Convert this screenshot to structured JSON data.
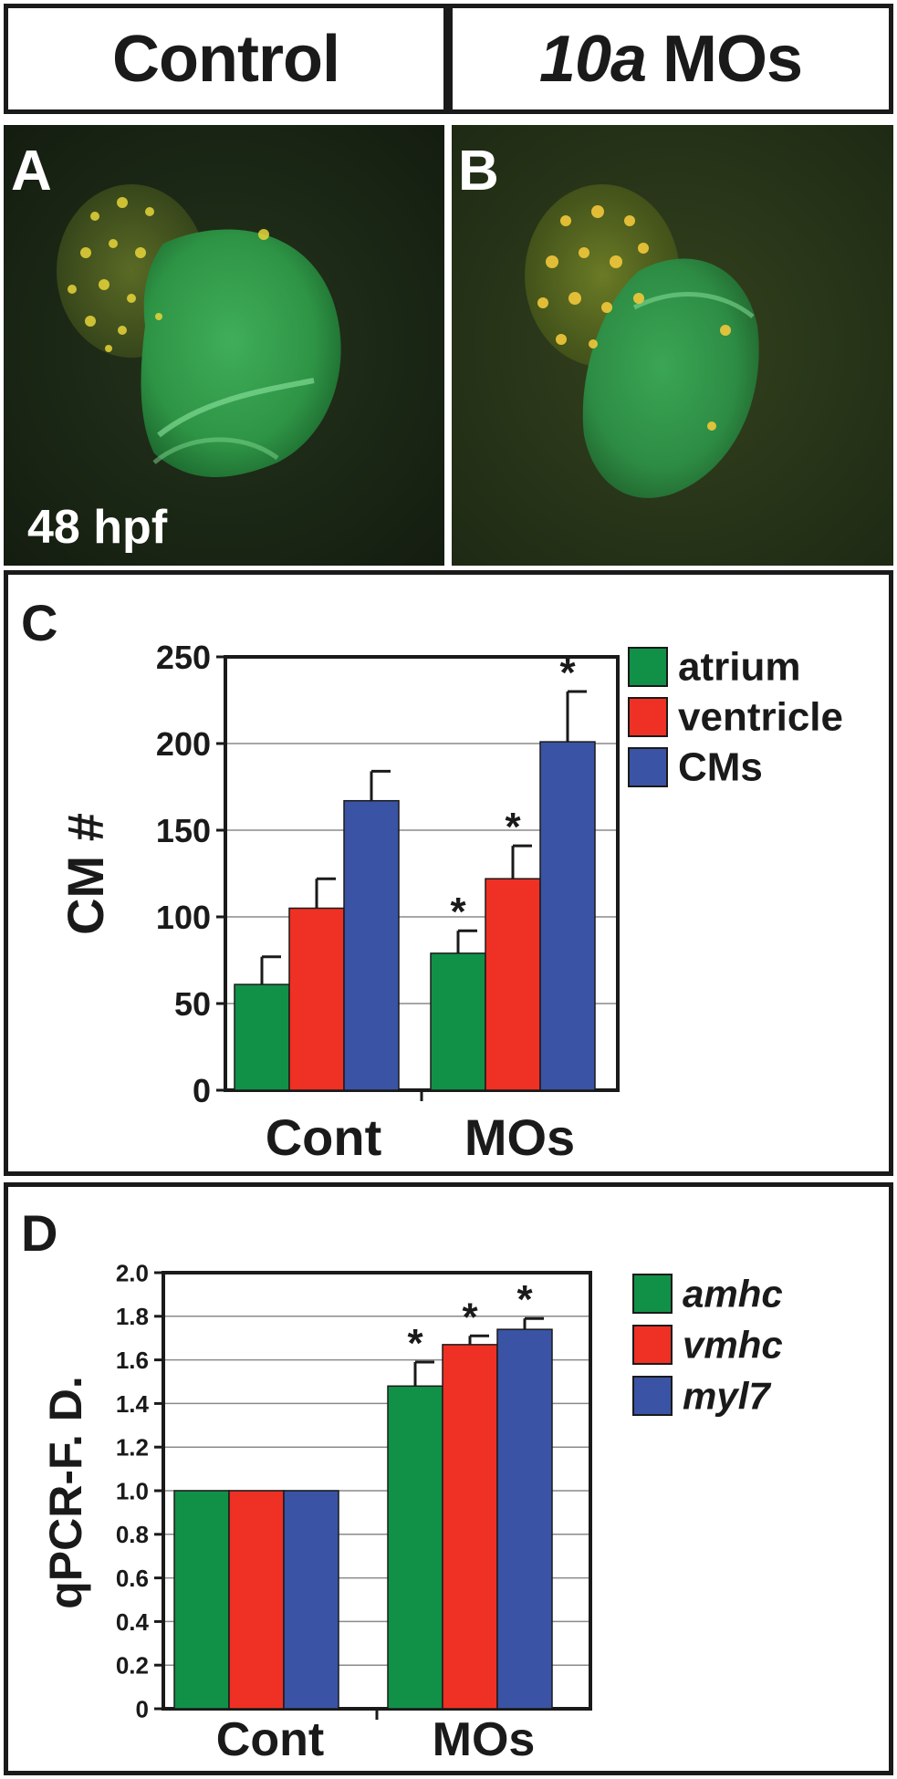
{
  "header": {
    "control": "Control",
    "mo_italic": "10a",
    "mo_rest": "MOs"
  },
  "panels": {
    "a": "A",
    "b": "B",
    "stage": "48 hpf"
  },
  "colors": {
    "atrium": "#119048",
    "ventricle": "#ee3124",
    "cms": "#3a53a4",
    "ink": "#1a1a1a"
  },
  "chart_data": [
    {
      "panel": "C",
      "type": "bar",
      "ylabel": "CM #",
      "ylim": [
        0,
        250
      ],
      "yticks": [
        "0",
        "50",
        "100",
        "150",
        "200",
        "250"
      ],
      "grid": true,
      "legend": "top-right",
      "categories": [
        "Cont",
        "MOs"
      ],
      "series": [
        {
          "name": "atrium",
          "italic": false,
          "values": [
            61,
            79
          ],
          "errors": [
            16,
            13
          ],
          "significant": [
            false,
            true
          ]
        },
        {
          "name": "ventricle",
          "italic": false,
          "values": [
            105,
            122
          ],
          "errors": [
            17,
            19
          ],
          "significant": [
            false,
            true
          ]
        },
        {
          "name": "CMs",
          "italic": false,
          "values": [
            167,
            201
          ],
          "errors": [
            17,
            29
          ],
          "significant": [
            false,
            true
          ]
        }
      ],
      "marker": "*"
    },
    {
      "panel": "D",
      "type": "bar",
      "ylabel": "qPCR-F. D.",
      "ylim": [
        0,
        2.0
      ],
      "yticks": [
        "0",
        "0.2",
        "0.4",
        "0.6",
        "0.8",
        "1.0",
        "1.2",
        "1.4",
        "1.6",
        "1.8",
        "2.0"
      ],
      "grid": true,
      "legend": "top-right",
      "categories": [
        "Cont",
        "MOs"
      ],
      "series": [
        {
          "name": "amhc",
          "italic": true,
          "values": [
            1.0,
            1.48
          ],
          "errors": [
            0,
            0.11
          ],
          "significant": [
            false,
            true
          ]
        },
        {
          "name": "vmhc",
          "italic": true,
          "values": [
            1.0,
            1.67
          ],
          "errors": [
            0,
            0.04
          ],
          "significant": [
            false,
            true
          ]
        },
        {
          "name": "myl7",
          "italic": true,
          "values": [
            1.0,
            1.74
          ],
          "errors": [
            0,
            0.05
          ],
          "significant": [
            false,
            true
          ]
        }
      ],
      "marker": "*"
    }
  ]
}
